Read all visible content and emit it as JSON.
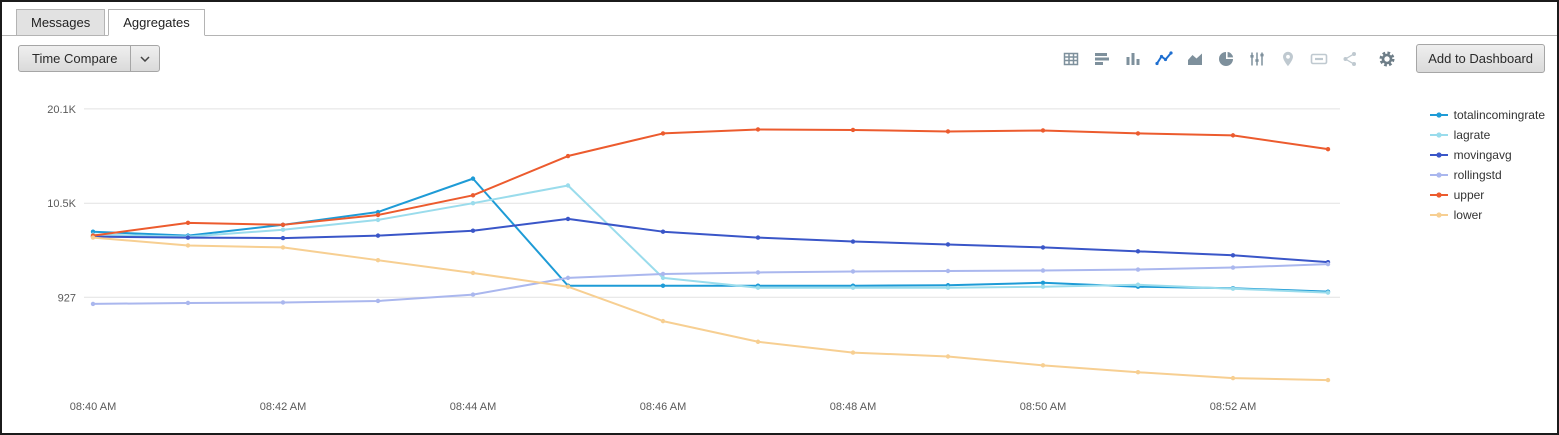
{
  "tabs": [
    {
      "label": "Messages",
      "active": false
    },
    {
      "label": "Aggregates",
      "active": true
    }
  ],
  "toolbar": {
    "time_compare_label": "Time Compare",
    "add_to_dashboard_label": "Add to Dashboard",
    "viz_icons": [
      "table-icon",
      "bar-chart-horizontal-icon",
      "column-chart-icon",
      "line-chart-icon",
      "area-chart-icon",
      "pie-chart-icon",
      "sliders-icon",
      "map-pin-icon",
      "single-value-icon",
      "cluster-icon",
      "settings-gear-icon"
    ],
    "active_viz_icon": "line-chart-icon",
    "colors": {
      "active_icon": "#1f6fd0",
      "icon": "#7e909c",
      "icon_disabled": "#bfc9d0"
    }
  },
  "chart_data": {
    "type": "line",
    "x": [
      "08:40 AM",
      "08:41 AM",
      "08:42 AM",
      "08:43 AM",
      "08:44 AM",
      "08:45 AM",
      "08:46 AM",
      "08:47 AM",
      "08:48 AM",
      "08:49 AM",
      "08:50 AM",
      "08:51 AM",
      "08:52 AM",
      "08:53 AM"
    ],
    "x_tick_labels": [
      "08:40 AM",
      "08:42 AM",
      "08:44 AM",
      "08:46 AM",
      "08:48 AM",
      "08:50 AM",
      "08:52 AM"
    ],
    "y_ticks": [
      {
        "value": 20100,
        "label": "20.1K"
      },
      {
        "value": 10500,
        "label": "10.5K"
      },
      {
        "value": 927,
        "label": "927"
      }
    ],
    "ylim": [
      -8000,
      21000
    ],
    "grid": true,
    "legend_position": "right",
    "series": [
      {
        "name": "totalincomingrate",
        "color": "#1e9bd6",
        "values": [
          7600,
          7200,
          8300,
          9600,
          13000,
          2100,
          2100,
          2100,
          2100,
          2150,
          2400,
          2000,
          1850,
          1500
        ]
      },
      {
        "name": "lagrate",
        "color": "#9adcec",
        "values": [
          7300,
          7100,
          7800,
          8800,
          10500,
          12300,
          2900,
          1900,
          1900,
          1900,
          2000,
          2200,
          1800,
          1400
        ]
      },
      {
        "name": "movingavg",
        "color": "#3a56c8",
        "values": [
          7100,
          7000,
          6950,
          7200,
          7700,
          8900,
          7600,
          7000,
          6600,
          6300,
          6000,
          5600,
          5200,
          4500
        ]
      },
      {
        "name": "rollingstd",
        "color": "#aab7ee",
        "values": [
          250,
          350,
          400,
          550,
          1200,
          2900,
          3300,
          3450,
          3550,
          3600,
          3650,
          3750,
          3950,
          4300
        ]
      },
      {
        "name": "upper",
        "color": "#ec5b2e",
        "values": [
          7200,
          8500,
          8300,
          9300,
          11300,
          15300,
          17600,
          18000,
          17950,
          17800,
          17900,
          17600,
          17400,
          16000
        ]
      },
      {
        "name": "lower",
        "color": "#f7cf92",
        "values": [
          7000,
          6200,
          6000,
          4700,
          3400,
          2000,
          -1500,
          -3600,
          -4700,
          -5100,
          -6000,
          -6700,
          -7300,
          -7500
        ]
      }
    ]
  }
}
